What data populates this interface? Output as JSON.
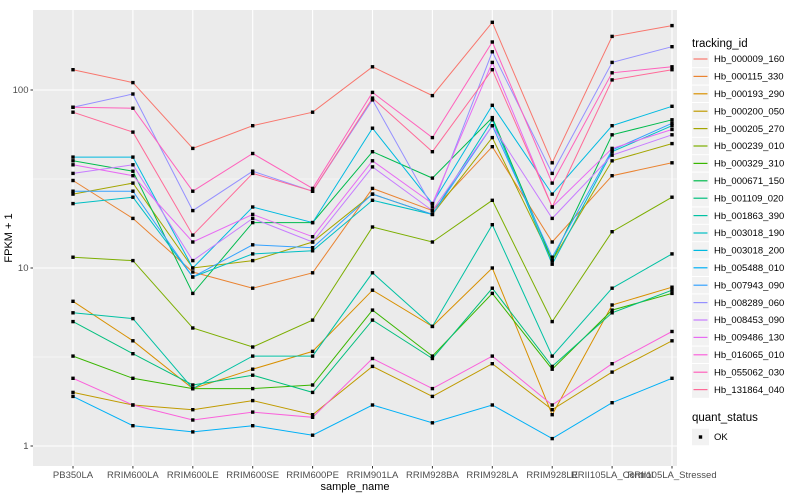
{
  "chart_data": {
    "type": "line",
    "title": "",
    "xlabel": "sample_name",
    "ylabel": "FPKM + 1",
    "y_scale": "log10",
    "y_ticks": [
      1,
      10,
      100
    ],
    "y_tick_labels": [
      "1",
      "10",
      "100"
    ],
    "y_minor_ticks": [
      3.162,
      31.62
    ],
    "ylim": [
      1,
      280
    ],
    "grid": true,
    "panel_bg": "#EBEBEB",
    "grid_color": "#FFFFFF",
    "tick_text_color": "#4D4D4D",
    "marker": "square",
    "marker_color": "#000000",
    "legend_position": "right",
    "legend_series_title": "tracking_id",
    "legend_status_title": "quant_status",
    "legend_status_items": [
      {
        "label": "OK",
        "marker": "square",
        "color": "#000000"
      }
    ],
    "categories": [
      "PB350LA",
      "RRIM600LA",
      "RRIM600LE",
      "RRIM600SE",
      "RRIM600PE",
      "RRIM901LA",
      "RRIM928BA",
      "RRIM928LA",
      "RRIM928LE",
      "RRII105LA_Control",
      "RRII105LA_Stressed"
    ],
    "series": [
      {
        "name": "Hb_000009_160",
        "color": "#F8766D",
        "values": [
          130,
          110,
          47,
          63,
          75,
          135,
          93,
          240,
          39,
          200,
          230
        ]
      },
      {
        "name": "Hb_000115_330",
        "color": "#EA8331",
        "values": [
          31,
          19,
          9.5,
          7.7,
          9.4,
          28,
          21,
          48,
          14,
          33,
          39
        ]
      },
      {
        "name": "Hb_000193_290",
        "color": "#D89000",
        "values": [
          6.5,
          3.9,
          2.1,
          2.7,
          3.4,
          7.5,
          4.7,
          10,
          1.5,
          6.2,
          7.8
        ]
      },
      {
        "name": "Hb_000200_050",
        "color": "#C09B00",
        "values": [
          2.0,
          1.7,
          1.6,
          1.8,
          1.5,
          2.8,
          1.9,
          2.9,
          1.6,
          2.6,
          3.9
        ]
      },
      {
        "name": "Hb_000205_270",
        "color": "#A3A500",
        "values": [
          26,
          30,
          10,
          11,
          14,
          26,
          20,
          54,
          11,
          40,
          50
        ]
      },
      {
        "name": "Hb_000239_010",
        "color": "#7CAE00",
        "values": [
          11.5,
          11,
          4.6,
          3.6,
          5.1,
          17,
          14,
          24,
          5,
          16,
          25
        ]
      },
      {
        "name": "Hb_000329_310",
        "color": "#39B600",
        "values": [
          3.2,
          2.4,
          2.1,
          2.1,
          2.2,
          5.8,
          3.2,
          7.2,
          2.7,
          5.8,
          7.2
        ]
      },
      {
        "name": "Hb_000671_150",
        "color": "#00BB4E",
        "values": [
          40,
          35,
          7.2,
          18,
          18,
          45,
          32,
          70,
          11,
          56,
          68
        ]
      },
      {
        "name": "Hb_001109_020",
        "color": "#00BF7D",
        "values": [
          5,
          3.3,
          2.2,
          2.5,
          2,
          5.1,
          3.1,
          7.7,
          2.8,
          5.6,
          7.5
        ]
      },
      {
        "name": "Hb_001863_390",
        "color": "#00C1A3",
        "values": [
          5.6,
          5.2,
          2.1,
          3.2,
          3.2,
          9.4,
          4.7,
          17.5,
          3.2,
          7.7,
          12
        ]
      },
      {
        "name": "Hb_003018_190",
        "color": "#00BFC4",
        "values": [
          23,
          25,
          8.9,
          12,
          12.5,
          24,
          20,
          68,
          10.5,
          45,
          63
        ]
      },
      {
        "name": "Hb_003018_200",
        "color": "#00BAE0",
        "values": [
          42,
          42,
          10,
          22,
          18,
          61,
          23,
          82,
          26,
          63,
          81
        ]
      },
      {
        "name": "Hb_005488_010",
        "color": "#00B0F6",
        "values": [
          1.9,
          1.3,
          1.2,
          1.3,
          1.15,
          1.7,
          1.35,
          1.7,
          1.1,
          1.75,
          2.4
        ]
      },
      {
        "name": "Hb_007943_090",
        "color": "#35A2FF",
        "values": [
          27,
          27,
          8.9,
          13.5,
          13,
          26,
          20,
          63,
          11.5,
          46,
          65
        ]
      },
      {
        "name": "Hb_008289_060",
        "color": "#9590FF",
        "values": [
          80,
          95,
          21,
          35,
          27,
          88,
          22,
          164,
          34,
          143,
          175
        ]
      },
      {
        "name": "Hb_008453_090",
        "color": "#C77CFF",
        "values": [
          34,
          38,
          11,
          19,
          14,
          37,
          21,
          63,
          19,
          43,
          56
        ]
      },
      {
        "name": "Hb_009486_130",
        "color": "#E76BF3",
        "values": [
          38,
          33,
          14,
          20,
          15,
          40,
          23,
          143,
          22,
          47,
          60
        ]
      },
      {
        "name": "Hb_016065_010",
        "color": "#FA62DB",
        "values": [
          2.4,
          1.7,
          1.4,
          1.55,
          1.45,
          3.1,
          2.1,
          3.2,
          1.7,
          2.9,
          4.4
        ]
      },
      {
        "name": "Hb_055062_030",
        "color": "#FF62BC",
        "values": [
          80,
          79,
          27,
          44,
          28,
          97,
          54,
          186,
          30,
          125,
          135
        ]
      },
      {
        "name": "Hb_131864_040",
        "color": "#FF6A98",
        "values": [
          75,
          58,
          15.3,
          34,
          27,
          90,
          45,
          130,
          22,
          114,
          130
        ]
      }
    ]
  }
}
